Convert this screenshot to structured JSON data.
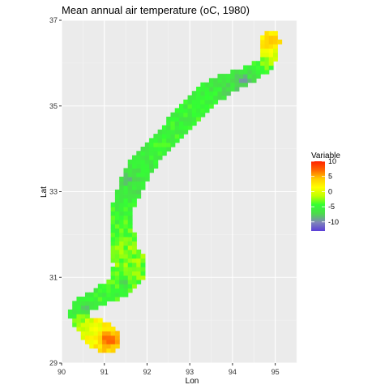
{
  "chart_data": {
    "type": "heatmap",
    "title": "Mean annual air temperature (oC, 1980)",
    "xlabel": "Lon",
    "ylabel": "Lat",
    "xlim": [
      90,
      95.5
    ],
    "ylim": [
      29,
      37
    ],
    "x_ticks": [
      90,
      91,
      92,
      93,
      94,
      95
    ],
    "y_ticks": [
      29,
      31,
      33,
      35,
      37
    ],
    "grid": true,
    "legend": {
      "title": "Variable",
      "placement": "right",
      "range": [
        -13,
        10
      ],
      "ticks": [
        10,
        5,
        0,
        -5,
        -10
      ],
      "colors": [
        "#5b3fd8",
        "#7f86b8",
        "#4cdb4c",
        "#33ff33",
        "#bfff00",
        "#ffff00",
        "#ffcc00",
        "#ff6600",
        "#ff2200"
      ]
    },
    "region": {
      "description_none": "",
      "centerline": [
        {
          "lon": 91.05,
          "lat": 29.55,
          "half_width": 0.35,
          "value": 4
        },
        {
          "lon": 90.75,
          "lat": 29.75,
          "half_width": 0.3,
          "value": 1
        },
        {
          "lon": 90.25,
          "lat": 30.15,
          "half_width": 0.13,
          "value": -5
        },
        {
          "lon": 90.5,
          "lat": 30.35,
          "half_width": 0.2,
          "value": -5
        },
        {
          "lon": 90.9,
          "lat": 30.55,
          "half_width": 0.22,
          "value": -5
        },
        {
          "lon": 91.4,
          "lat": 30.85,
          "half_width": 0.28,
          "value": -4
        },
        {
          "lon": 91.6,
          "lat": 31.25,
          "half_width": 0.4,
          "value": -3
        },
        {
          "lon": 91.45,
          "lat": 31.7,
          "half_width": 0.3,
          "value": -3
        },
        {
          "lon": 91.4,
          "lat": 32.1,
          "half_width": 0.28,
          "value": -4
        },
        {
          "lon": 91.4,
          "lat": 32.6,
          "half_width": 0.25,
          "value": -5
        },
        {
          "lon": 91.6,
          "lat": 33.1,
          "half_width": 0.28,
          "value": -6
        },
        {
          "lon": 91.85,
          "lat": 33.6,
          "half_width": 0.3,
          "value": -6
        },
        {
          "lon": 92.2,
          "lat": 34.0,
          "half_width": 0.25,
          "value": -5
        },
        {
          "lon": 92.6,
          "lat": 34.4,
          "half_width": 0.28,
          "value": -5
        },
        {
          "lon": 93.0,
          "lat": 34.85,
          "half_width": 0.3,
          "value": -5
        },
        {
          "lon": 93.4,
          "lat": 35.25,
          "half_width": 0.3,
          "value": -5
        },
        {
          "lon": 93.9,
          "lat": 35.55,
          "half_width": 0.22,
          "value": -7
        },
        {
          "lon": 94.4,
          "lat": 35.75,
          "half_width": 0.2,
          "value": -6
        },
        {
          "lon": 94.75,
          "lat": 35.95,
          "half_width": 0.18,
          "value": -4
        },
        {
          "lon": 94.85,
          "lat": 36.25,
          "half_width": 0.2,
          "value": 0
        },
        {
          "lon": 94.85,
          "lat": 36.5,
          "half_width": 0.25,
          "value": 3
        }
      ],
      "cold_spots": [
        {
          "lon": 94.25,
          "lat": 35.6,
          "value": -11
        },
        {
          "lon": 91.55,
          "lat": 33.3,
          "value": -9
        },
        {
          "lon": 91.1,
          "lat": 33.0,
          "value": -8
        },
        {
          "lon": 91.45,
          "lat": 30.9,
          "value": -9
        },
        {
          "lon": 90.55,
          "lat": 30.3,
          "value": -9
        }
      ],
      "warm_spots": [
        {
          "lon": 91.15,
          "lat": 29.55,
          "value": 9
        },
        {
          "lon": 91.0,
          "lat": 29.6,
          "value": 7
        },
        {
          "lon": 94.95,
          "lat": 36.5,
          "value": 5
        },
        {
          "lon": 94.8,
          "lat": 36.45,
          "value": 4
        }
      ]
    }
  }
}
